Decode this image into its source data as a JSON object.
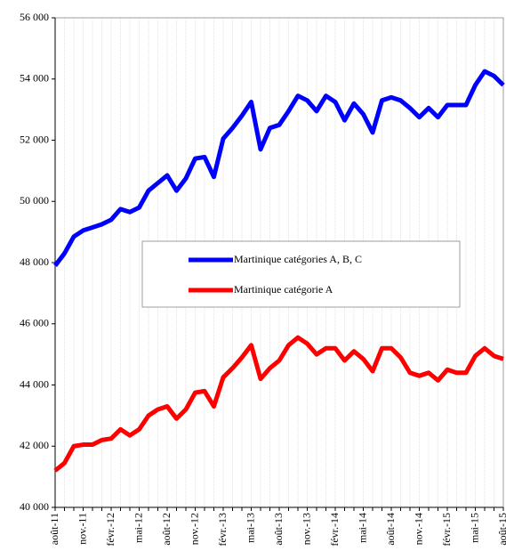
{
  "chart_data": {
    "type": "line",
    "categories": [
      "août-11",
      null,
      null,
      "nov.-11",
      null,
      null,
      "févr.-12",
      null,
      null,
      "mai-12",
      null,
      null,
      "août-12",
      null,
      null,
      "nov.-12",
      null,
      null,
      "févr.-13",
      null,
      null,
      "mai-13",
      null,
      null,
      "août-13",
      null,
      null,
      "nov.-13",
      null,
      null,
      "févr.-14",
      null,
      null,
      "mai-14",
      null,
      null,
      "août-14",
      null,
      null,
      "nov.-14",
      null,
      null,
      "févr.-15",
      null,
      null,
      "mai-15",
      null,
      null,
      "août-15"
    ],
    "series": [
      {
        "name": "Martinique catégories A, B, C",
        "color": "#0000ff",
        "values": [
          47900,
          48300,
          48850,
          49050,
          49150,
          49250,
          49400,
          49750,
          49650,
          49800,
          50350,
          50600,
          50850,
          50350,
          50750,
          51400,
          51450,
          50800,
          52050,
          52400,
          52800,
          53250,
          51700,
          52400,
          52500,
          52950,
          53450,
          53300,
          52950,
          53450,
          53250,
          52650,
          53200,
          52850,
          52250,
          53300,
          53400,
          53300,
          53050,
          52750,
          53050,
          52750,
          53150,
          53150,
          53150,
          53800,
          54250,
          54100,
          53800
        ]
      },
      {
        "name": "Martinique catégorie A",
        "color": "#ff0000",
        "values": [
          41200,
          41450,
          42000,
          42050,
          42050,
          42200,
          42250,
          42550,
          42350,
          42550,
          43000,
          43200,
          43300,
          42900,
          43200,
          43750,
          43800,
          43300,
          44250,
          44550,
          44900,
          45300,
          44200,
          44550,
          44800,
          45300,
          45550,
          45350,
          45000,
          45200,
          45200,
          44800,
          45100,
          44850,
          44450,
          45200,
          45200,
          44900,
          44400,
          44300,
          44400,
          44150,
          44500,
          44400,
          44400,
          44950,
          45200,
          44950,
          44850
        ]
      }
    ],
    "ylim": [
      40000,
      56000
    ],
    "yticks": [
      {
        "value": 40000,
        "label": "40 000"
      },
      {
        "value": 42000,
        "label": "42 000"
      },
      {
        "value": 44000,
        "label": "44 000"
      },
      {
        "value": 46000,
        "label": "46 000"
      },
      {
        "value": 48000,
        "label": "48 000"
      },
      {
        "value": 50000,
        "label": "50 000"
      },
      {
        "value": 52000,
        "label": "52 000"
      },
      {
        "value": 54000,
        "label": "54 000"
      },
      {
        "value": 56000,
        "label": "56 000"
      }
    ],
    "grid": true
  }
}
